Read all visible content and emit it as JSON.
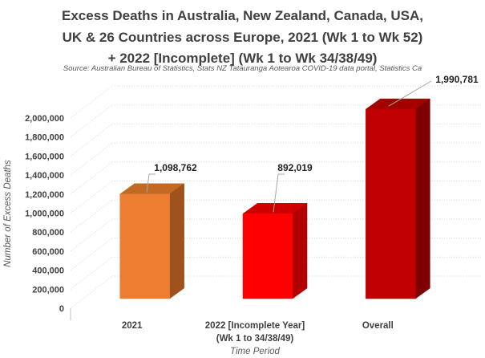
{
  "title_lines": [
    "Excess Deaths in Australia, New Zealand, Canada, USA,",
    "UK & 26 Countries across Europe, 2021 (Wk 1 to Wk 52)",
    "+ 2022 [Incomplete] (Wk 1 to Wk 34/38/49)"
  ],
  "source": "Source: Australian Bureau of Statistics, Stats NZ Tatauranga Aotearoa COVID-19 data portal, Statistics Ca",
  "chart_data": {
    "type": "bar",
    "subtype": "3d-column",
    "title": "Excess Deaths in Australia, New Zealand, Canada, USA, UK & 26 Countries across Europe, 2021 (Wk 1 to Wk 52) + 2022 [Incomplete] (Wk 1 to Wk 34/38/49)",
    "source": "Source: Australian Bureau of Statistics, Stats NZ Tatauranga Aotearoa COVID-19 data portal, Statistics Ca",
    "categories": [
      "2021",
      "2022 [Incomplete Year] (Wk 1 to 34/38/49)",
      "Overall"
    ],
    "category_label_lines": [
      [
        "2021"
      ],
      [
        "2022 [Incomplete Year]",
        "(Wk 1 to 34/38/49)"
      ],
      [
        "Overall"
      ]
    ],
    "values": [
      1098762,
      892019,
      1990781
    ],
    "data_labels": [
      "1,098,762",
      "892,019",
      "1,990,781"
    ],
    "xlabel": "Time Period",
    "ylabel": "Number of Excess Deaths",
    "ylim": [
      0,
      2000000
    ],
    "ytick_step": 200000,
    "ytick_labels": [
      "0",
      "200,000",
      "400,000",
      "600,000",
      "800,000",
      "1,000,000",
      "1,200,000",
      "1,400,000",
      "1,600,000",
      "1,800,000",
      "2,000,000"
    ],
    "grid": true,
    "legend": false,
    "gridline_color": "#D9D9D9",
    "leader_line_color": "#A6A6A6",
    "bar_colors": [
      {
        "front": "#ED7D31",
        "top": "#C06A24",
        "side": "#A0521C"
      },
      {
        "front": "#FE0000",
        "top": "#D10000",
        "side": "#B20000"
      },
      {
        "front": "#C00000",
        "top": "#A30000",
        "side": "#7E0000"
      }
    ],
    "text_colors": {
      "title": "#404040",
      "axis_labels": "#404040",
      "axis_titles": "#595959",
      "data_labels": "#1F1F1F",
      "source": "#595959"
    }
  }
}
